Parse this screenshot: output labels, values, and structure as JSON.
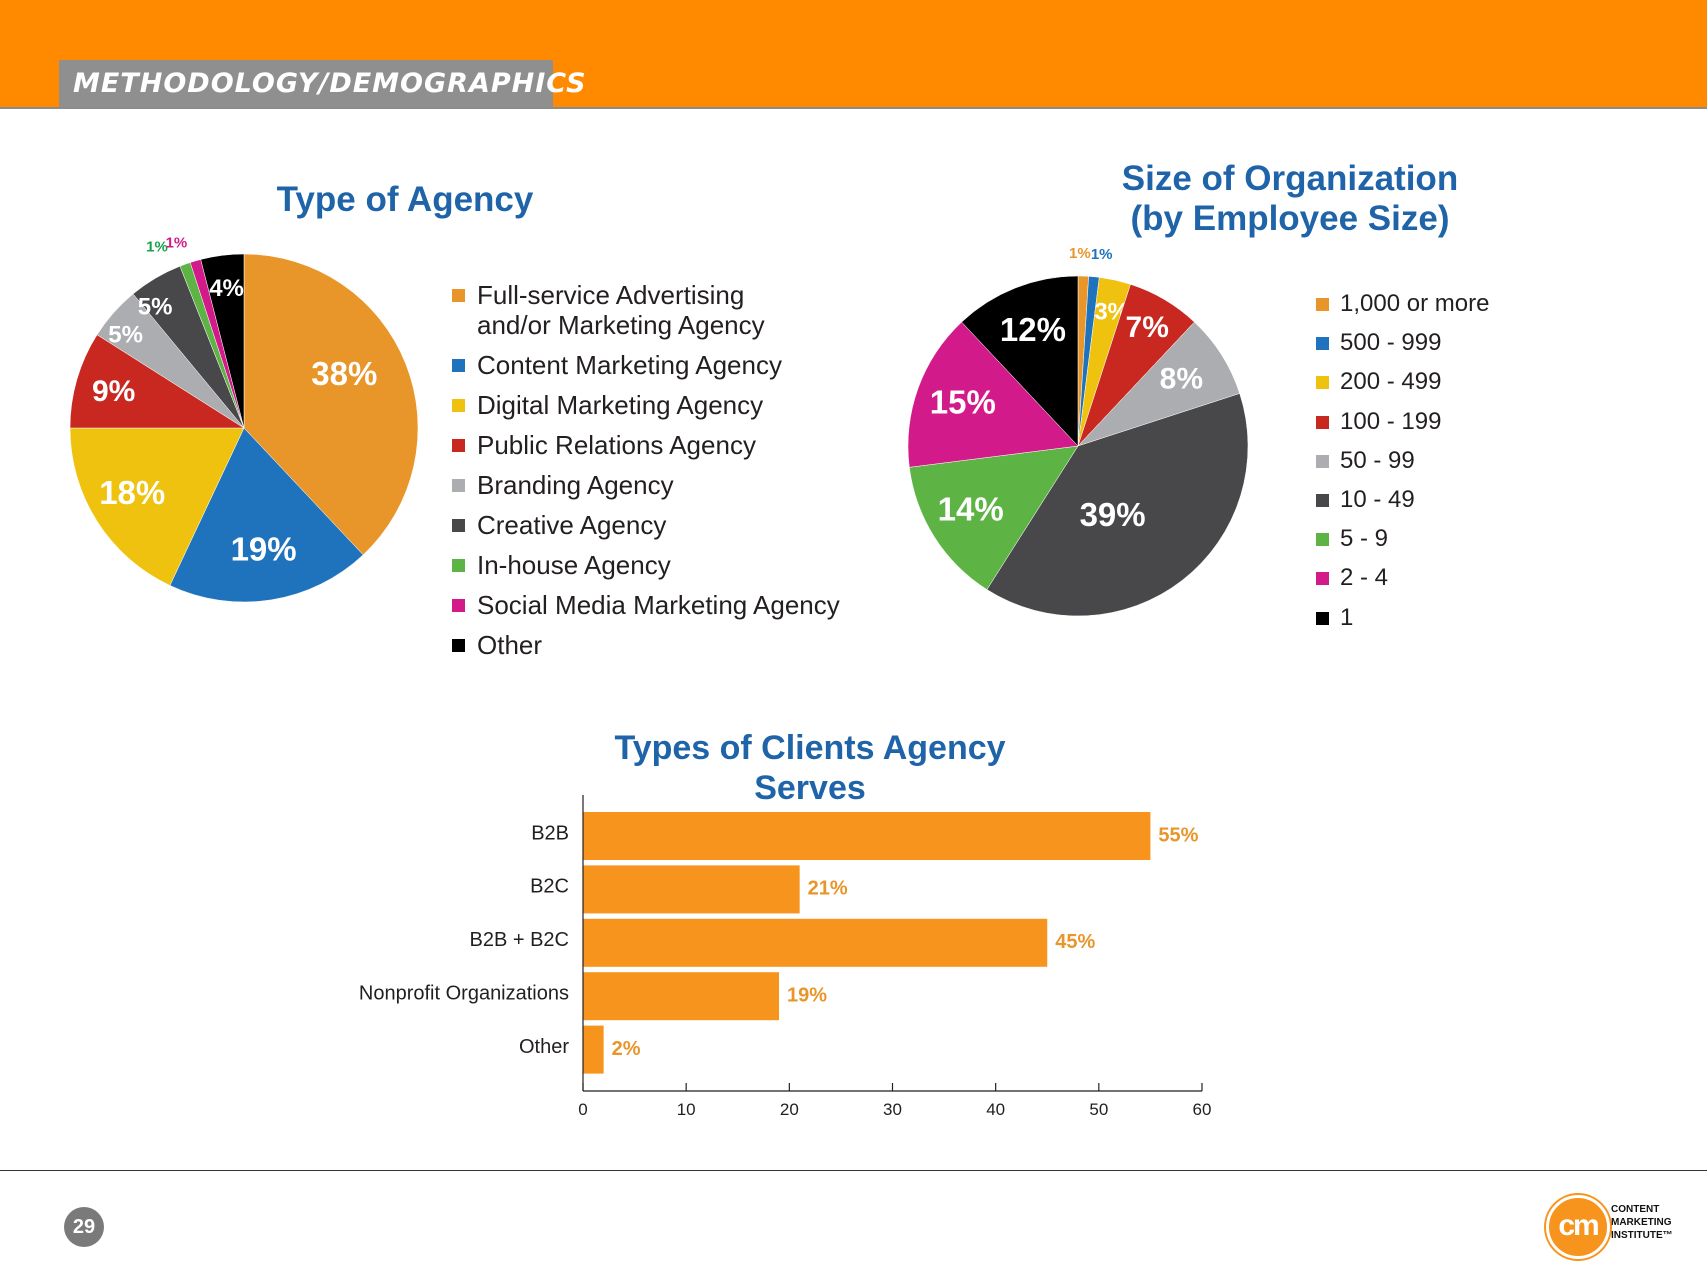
{
  "header": {
    "section_title": "METHODOLOGY/DEMOGRAPHICS",
    "accent": "#ff8a00"
  },
  "chart_data": [
    {
      "type": "pie",
      "title": "Type of Agency",
      "categories": [
        "Full-service Advertising and/or Marketing Agency",
        "Content Marketing Agency",
        "Digital Marketing Agency",
        "Public Relations Agency",
        "Branding Agency",
        "Creative Agency",
        "In-house Agency",
        "Social Media Marketing Agency",
        "Other"
      ],
      "legend_lines": [
        [
          "Full-service Advertising",
          "and/or Marketing Agency"
        ],
        [
          "Content Marketing Agency"
        ],
        [
          "Digital Marketing Agency"
        ],
        [
          "Public Relations Agency"
        ],
        [
          "Branding Agency"
        ],
        [
          "Creative Agency"
        ],
        [
          "In-house Agency"
        ],
        [
          "Social Media Marketing Agency"
        ],
        [
          "Other"
        ]
      ],
      "values": [
        38,
        19,
        18,
        9,
        5,
        5,
        1,
        1,
        4
      ],
      "labels": [
        "38%",
        "19%",
        "18%",
        "9%",
        "5%",
        "5%",
        "1%",
        "1%",
        "4%"
      ],
      "colors": [
        "#e8962a",
        "#1f72bc",
        "#efc20f",
        "#c8281f",
        "#acadb0",
        "#48484a",
        "#5db444",
        "#d31a8b",
        "#000000"
      ],
      "legend": "right"
    },
    {
      "type": "pie",
      "title": "Size of Organization (by Employee Size)",
      "title_lines": [
        "Size of Organization",
        "(by Employee Size)"
      ],
      "categories": [
        "1,000 or more",
        "500 - 999",
        "200 - 499",
        "100 - 199",
        "50 - 99",
        "10 - 49",
        "5 - 9",
        "2 - 4",
        "1"
      ],
      "values": [
        1,
        1,
        3,
        7,
        8,
        39,
        14,
        15,
        12
      ],
      "labels": [
        "1%",
        "1%",
        "3%",
        "7%",
        "8%",
        "39%",
        "14%",
        "15%",
        "12%"
      ],
      "colors": [
        "#e8962a",
        "#1f72bc",
        "#efc20f",
        "#c8281f",
        "#acadb0",
        "#48484a",
        "#5db444",
        "#d31a8b",
        "#000000"
      ],
      "legend": "right"
    },
    {
      "type": "bar",
      "orientation": "horizontal",
      "title": "Types of Clients Agency Serves",
      "categories": [
        "B2B",
        "B2C",
        "B2B + B2C",
        "Nonprofit Organizations",
        "Other"
      ],
      "values": [
        55,
        21,
        45,
        19,
        2
      ],
      "labels": [
        "55%",
        "21%",
        "45%",
        "19%",
        "2%"
      ],
      "xlim": [
        0,
        60
      ],
      "xticks": [
        0,
        10,
        20,
        30,
        40,
        50,
        60
      ],
      "xticklabels": [
        "0",
        "10",
        "20",
        "30",
        "40",
        "50",
        "60"
      ],
      "bar_color": "#f7941d",
      "label_color": "#e8962a"
    }
  ],
  "footer": {
    "page_number": "29",
    "logo_mark": "cm",
    "logo_lines": [
      "CONTENT",
      "MARKETING",
      "INSTITUTE™"
    ]
  }
}
